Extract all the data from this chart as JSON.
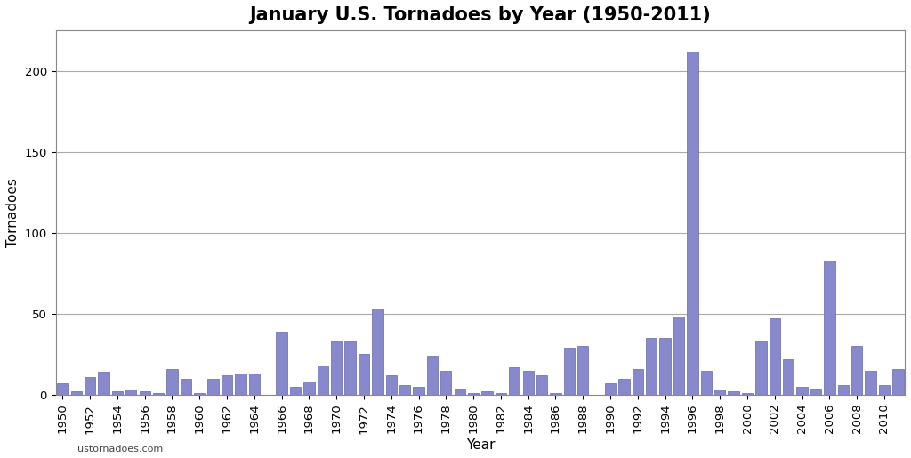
{
  "title": "January U.S. Tornadoes by Year (1950-2011)",
  "xlabel": "Year",
  "ylabel": "Tornadoes",
  "watermark": "ustornadoes.com",
  "bar_color": "#8888cc",
  "bar_edge_color": "#6666aa",
  "background_color": "#ffffff",
  "years": [
    1950,
    1951,
    1952,
    1953,
    1954,
    1955,
    1956,
    1957,
    1958,
    1959,
    1960,
    1961,
    1962,
    1963,
    1964,
    1965,
    1966,
    1967,
    1968,
    1969,
    1970,
    1971,
    1972,
    1973,
    1974,
    1975,
    1976,
    1977,
    1978,
    1979,
    1980,
    1981,
    1982,
    1983,
    1984,
    1985,
    1986,
    1987,
    1988,
    1989,
    1990,
    1991,
    1992,
    1993,
    1994,
    1995,
    1996,
    1997,
    1998,
    1999,
    2000,
    2001,
    2002,
    2003,
    2004,
    2005,
    2006,
    2007,
    2008,
    2009,
    2010,
    2011
  ],
  "values": [
    7,
    2,
    11,
    14,
    2,
    3,
    2,
    1,
    16,
    10,
    1,
    10,
    12,
    13,
    13,
    0,
    39,
    5,
    8,
    18,
    33,
    33,
    25,
    53,
    12,
    6,
    5,
    24,
    15,
    4,
    1,
    2,
    1,
    17,
    15,
    12,
    1,
    29,
    30,
    0,
    7,
    10,
    16,
    35,
    35,
    48,
    212,
    15,
    3,
    2,
    1,
    33,
    47,
    22,
    5,
    4,
    83,
    6,
    30,
    15,
    6,
    16
  ],
  "ylim": [
    0,
    225
  ],
  "yticks": [
    0,
    50,
    100,
    150,
    200
  ],
  "title_fontsize": 15,
  "axis_fontsize": 11,
  "tick_fontsize": 9.5
}
